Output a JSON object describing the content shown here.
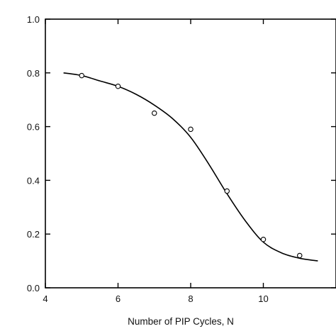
{
  "chart_data": {
    "type": "scatter",
    "title": "",
    "xlabel": "Number of PIP Cycles, N",
    "ylabel": "",
    "xlim": [
      4,
      12
    ],
    "ylim": [
      0.0,
      1.0
    ],
    "grid": false,
    "x_ticks": [
      "4",
      "6",
      "8",
      "10"
    ],
    "y_ticks": [
      "0.0",
      "0.2",
      "0.4",
      "0.6",
      "0.8",
      "1.0"
    ],
    "series": [
      {
        "kind": "points",
        "x": [
          5,
          6,
          7,
          8,
          9,
          10,
          11
        ],
        "y": [
          0.79,
          0.75,
          0.65,
          0.59,
          0.36,
          0.18,
          0.12
        ]
      },
      {
        "kind": "fit-line",
        "x": [
          4.5,
          5.0,
          5.5,
          6.0,
          6.5,
          7.0,
          7.5,
          8.0,
          8.5,
          9.0,
          9.5,
          10.0,
          10.5,
          11.0,
          11.5
        ],
        "y": [
          0.8,
          0.79,
          0.77,
          0.75,
          0.72,
          0.68,
          0.63,
          0.56,
          0.46,
          0.35,
          0.25,
          0.17,
          0.13,
          0.11,
          0.1
        ]
      }
    ]
  }
}
